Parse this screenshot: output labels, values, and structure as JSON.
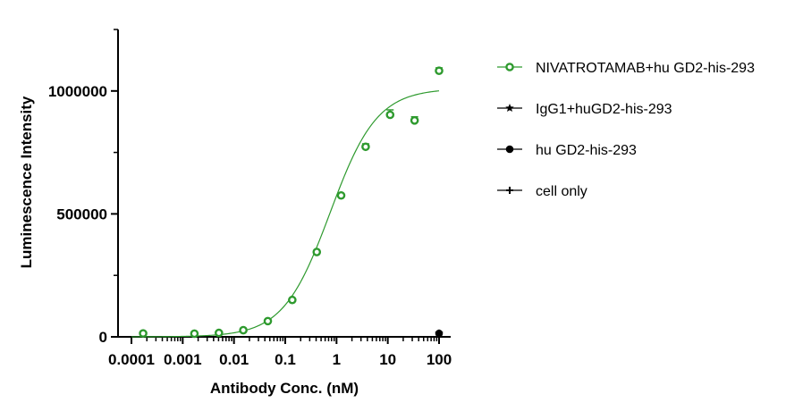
{
  "chart_data": {
    "type": "scatter",
    "xlabel": "Antibody Conc. (nM)",
    "ylabel": "Luminescence Intensity",
    "x_scale": "log",
    "xlim": [
      0.0001,
      100
    ],
    "ylim": [
      0,
      1250000
    ],
    "x_ticks": [
      {
        "value": 0.0001,
        "label": "0.0001"
      },
      {
        "value": 0.001,
        "label": "0.001"
      },
      {
        "value": 0.01,
        "label": "0.01"
      },
      {
        "value": 0.1,
        "label": "0.1"
      },
      {
        "value": 1,
        "label": "1"
      },
      {
        "value": 10,
        "label": "10"
      },
      {
        "value": 100,
        "label": "100"
      }
    ],
    "y_ticks": [
      {
        "value": 0,
        "label": "0"
      },
      {
        "value": 500000,
        "label": "500000"
      },
      {
        "value": 1000000,
        "label": "1000000"
      }
    ],
    "legend_position": "right",
    "grid": false,
    "series": [
      {
        "name": "NIVATROTAMAB+hu GD2-his-293",
        "color": "#2e9a2e",
        "marker": "open-circle",
        "fit": "4PL",
        "x": [
          0.000169,
          0.00169,
          0.00508,
          0.0152,
          0.0457,
          0.137,
          0.412,
          1.23,
          3.7,
          11.1,
          33.3,
          100
        ],
        "y": [
          14000,
          13000,
          16000,
          27000,
          64000,
          150000,
          345000,
          575000,
          773000,
          903000,
          880000,
          1082000
        ],
        "error": [
          0,
          0,
          0,
          0,
          0,
          0,
          0,
          0,
          12000,
          20000,
          15000,
          12000
        ]
      },
      {
        "name": "IgG1+huGD2-his-293",
        "color": "#000000",
        "marker": "star",
        "x": [
          100
        ],
        "y": [
          14000
        ]
      },
      {
        "name": "hu GD2-his-293",
        "color": "#000000",
        "marker": "filled-circle",
        "x": [
          100
        ],
        "y": [
          14000
        ]
      },
      {
        "name": "cell only",
        "color": "#000000",
        "marker": "plus",
        "x": [
          100
        ],
        "y": [
          14000
        ]
      }
    ]
  }
}
